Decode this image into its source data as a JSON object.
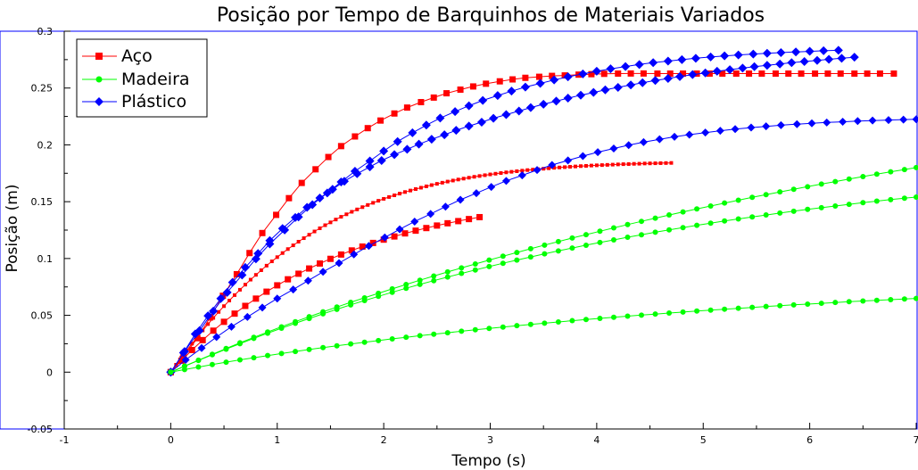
{
  "chart_data": {
    "type": "line",
    "title": "Posição por Tempo de Barquinhos de Materiais Variados",
    "xlabel": "Tempo (s)",
    "ylabel": "Posição (m)",
    "xlim": [
      -1,
      7
    ],
    "ylim": [
      -0.05,
      0.3
    ],
    "x_ticks": [
      -1,
      0,
      1,
      2,
      3,
      4,
      5,
      6,
      7
    ],
    "x_tick_labels": [
      "-1",
      "0",
      "1",
      "2",
      "3",
      "4",
      "5",
      "6",
      "7"
    ],
    "y_ticks": [
      -0.05,
      0,
      0.05,
      0.1,
      0.15,
      0.2,
      0.25,
      0.3
    ],
    "y_tick_labels": [
      "-0.05",
      "0",
      "0.05",
      "0.1",
      "0.15",
      "0.2",
      "0.25",
      "0.3"
    ],
    "grid": false,
    "legend_position": "top-left",
    "legend": [
      {
        "label": "Aço",
        "color": "#ff0000",
        "marker": "square"
      },
      {
        "label": "Madeira",
        "color": "#00ff00",
        "marker": "circle"
      },
      {
        "label": "Plástico",
        "color": "#0000ff",
        "marker": "diamond"
      }
    ],
    "series": [
      {
        "group": "Aço",
        "color": "#ff0000",
        "marker": "square",
        "marker_size": 7,
        "x": [
          0,
          0.12,
          0.25,
          0.37,
          0.49,
          0.62,
          0.74,
          0.86,
          0.99,
          1.11,
          1.23,
          1.36,
          1.48,
          1.6,
          1.73,
          1.85,
          1.97,
          2.1,
          2.22,
          2.35,
          2.47,
          2.59,
          2.72,
          2.84,
          2.96,
          3.09,
          3.21,
          3.33,
          3.46,
          3.58,
          3.7,
          3.83,
          3.95,
          4.07,
          4.2,
          4.32,
          4.44,
          4.57,
          4.69,
          4.81,
          4.94,
          5.06,
          5.18,
          5.31,
          5.43,
          5.55,
          5.68,
          5.8,
          5.92,
          6.05,
          6.17,
          6.29,
          6.42,
          6.54,
          6.66,
          6.79
        ],
        "y": [
          0,
          0.0136,
          0.0299,
          0.0481,
          0.0672,
          0.0862,
          0.1048,
          0.1224,
          0.1384,
          0.1531,
          0.1665,
          0.1785,
          0.1893,
          0.1989,
          0.2074,
          0.2147,
          0.2214,
          0.2276,
          0.2328,
          0.2376,
          0.2416,
          0.2454,
          0.2486,
          0.2514,
          0.2538,
          0.2559,
          0.2576,
          0.259,
          0.2599,
          0.2607,
          0.2611,
          0.2618,
          0.2622,
          0.2625,
          0.2627,
          0.2628,
          0.2628,
          0.2627,
          0.2627,
          0.2627,
          0.2627,
          0.2627,
          0.2627,
          0.2627,
          0.2627,
          0.2627,
          0.2627,
          0.2627,
          0.2627,
          0.2627,
          0.2627,
          0.2627,
          0.2627,
          0.2627,
          0.2627,
          0.2627
        ]
      },
      {
        "group": "Aço",
        "color": "#ff0000",
        "marker": "square",
        "marker_size": 7,
        "x": [
          0,
          0.1,
          0.2,
          0.3,
          0.4,
          0.5,
          0.6,
          0.7,
          0.8,
          0.9,
          1.0,
          1.1,
          1.2,
          1.3,
          1.4,
          1.5,
          1.6,
          1.7,
          1.8,
          1.9,
          2.0,
          2.1,
          2.2,
          2.3,
          2.4,
          2.5,
          2.6,
          2.7,
          2.8,
          2.9
        ],
        "y": [
          0,
          0.0101,
          0.0195,
          0.0282,
          0.0365,
          0.0443,
          0.0515,
          0.0583,
          0.0647,
          0.0708,
          0.0764,
          0.0817,
          0.0866,
          0.0912,
          0.0956,
          0.0997,
          0.1035,
          0.1071,
          0.1105,
          0.1137,
          0.1166,
          0.1194,
          0.1221,
          0.1245,
          0.1268,
          0.129,
          0.131,
          0.1329,
          0.1347,
          0.1364
        ]
      },
      {
        "group": "Aço",
        "color": "#ff0000",
        "marker": "square",
        "marker_size": 4,
        "x": [
          0,
          0.05,
          0.1,
          0.15,
          0.2,
          0.25,
          0.3,
          0.35,
          0.4,
          0.45,
          0.5,
          0.55,
          0.6,
          0.65,
          0.7,
          0.75,
          0.8,
          0.85,
          0.9,
          0.95,
          1.0,
          1.05,
          1.1,
          1.15,
          1.2,
          1.25,
          1.3,
          1.35,
          1.4,
          1.45,
          1.5,
          1.55,
          1.6,
          1.65,
          1.7,
          1.75,
          1.8,
          1.85,
          1.9,
          1.95,
          2.0,
          2.05,
          2.1,
          2.15,
          2.2,
          2.25,
          2.3,
          2.35,
          2.4,
          2.45,
          2.5,
          2.55,
          2.6,
          2.65,
          2.7,
          2.75,
          2.8,
          2.85,
          2.9,
          2.95,
          3.0,
          3.05,
          3.1,
          3.15,
          3.2,
          3.25,
          3.3,
          3.35,
          3.4,
          3.45,
          3.5,
          3.55,
          3.6,
          3.65,
          3.7,
          3.75,
          3.8,
          3.85,
          3.9,
          3.95,
          4.0,
          4.05,
          4.1,
          4.15,
          4.2,
          4.25,
          4.3,
          4.35,
          4.4,
          4.45,
          4.5,
          4.55,
          4.6,
          4.65,
          4.7
        ],
        "y": [
          0,
          0.0065,
          0.0129,
          0.0191,
          0.0251,
          0.031,
          0.0367,
          0.0423,
          0.0477,
          0.053,
          0.0581,
          0.063,
          0.0678,
          0.0725,
          0.077,
          0.0814,
          0.0856,
          0.0897,
          0.0937,
          0.0975,
          0.1012,
          0.1048,
          0.1083,
          0.1116,
          0.1148,
          0.1179,
          0.1209,
          0.1238,
          0.1266,
          0.1293,
          0.1318,
          0.1343,
          0.1367,
          0.1389,
          0.1411,
          0.1432,
          0.1452,
          0.1471,
          0.149,
          0.1508,
          0.1525,
          0.1541,
          0.1556,
          0.1571,
          0.1585,
          0.1598,
          0.1611,
          0.1623,
          0.1635,
          0.1646,
          0.1657,
          0.1667,
          0.1677,
          0.1686,
          0.1695,
          0.1703,
          0.1711,
          0.1719,
          0.1726,
          0.1733,
          0.174,
          0.1746,
          0.1752,
          0.1758,
          0.1763,
          0.1768,
          0.1773,
          0.1778,
          0.1782,
          0.1786,
          0.179,
          0.1794,
          0.1798,
          0.1801,
          0.1804,
          0.1807,
          0.181,
          0.1813,
          0.1815,
          0.1818,
          0.182,
          0.1822,
          0.1824,
          0.1826,
          0.1828,
          0.183,
          0.1831,
          0.1833,
          0.1834,
          0.1836,
          0.1837,
          0.1838,
          0.1839,
          0.184,
          0.1841
        ]
      },
      {
        "group": "Plástico",
        "color": "#0000ff",
        "marker": "diamond",
        "marker_size": 10,
        "x": [
          0,
          0.12,
          0.23,
          0.35,
          0.47,
          0.58,
          0.7,
          0.82,
          0.93,
          1.05,
          1.17,
          1.28,
          1.4,
          1.52,
          1.63,
          1.75,
          1.87,
          1.98,
          2.1,
          2.22,
          2.33,
          2.45,
          2.57,
          2.68,
          2.8,
          2.92,
          3.03,
          3.15,
          3.27,
          3.38,
          3.5,
          3.62,
          3.73,
          3.85,
          3.97,
          4.08,
          4.2,
          4.32,
          4.43,
          4.55,
          4.67,
          4.78,
          4.9,
          5.02,
          5.13,
          5.25,
          5.37,
          5.48,
          5.6,
          5.72,
          5.83,
          5.95,
          6.07,
          6.18,
          6.3,
          6.42
        ],
        "y": [
          0,
          0.0171,
          0.0336,
          0.0496,
          0.0648,
          0.079,
          0.0921,
          0.1044,
          0.1158,
          0.1264,
          0.1361,
          0.145,
          0.1533,
          0.1609,
          0.168,
          0.1746,
          0.1806,
          0.1862,
          0.1914,
          0.1961,
          0.2006,
          0.2049,
          0.2089,
          0.2128,
          0.2165,
          0.22,
          0.2234,
          0.2266,
          0.2298,
          0.2328,
          0.2357,
          0.2385,
          0.2411,
          0.2437,
          0.2461,
          0.2484,
          0.2506,
          0.2527,
          0.2547,
          0.2566,
          0.2584,
          0.2601,
          0.2618,
          0.2633,
          0.2648,
          0.2662,
          0.2675,
          0.2688,
          0.27,
          0.2712,
          0.2723,
          0.2733,
          0.2743,
          0.2753,
          0.2762,
          0.2771
        ]
      },
      {
        "group": "Plástico",
        "color": "#0000ff",
        "marker": "diamond",
        "marker_size": 10,
        "x": [
          0,
          0.13,
          0.27,
          0.4,
          0.53,
          0.67,
          0.8,
          0.93,
          1.07,
          1.2,
          1.33,
          1.47,
          1.6,
          1.73,
          1.87,
          2.0,
          2.13,
          2.27,
          2.4,
          2.53,
          2.67,
          2.8,
          2.93,
          3.07,
          3.2,
          3.33,
          3.47,
          3.6,
          3.73,
          3.87,
          4.0,
          4.13,
          4.27,
          4.4,
          4.53,
          4.67,
          4.8,
          4.93,
          5.07,
          5.2,
          5.33,
          5.47,
          5.6,
          5.73,
          5.87,
          6.0,
          6.13,
          6.27
        ],
        "y": [
          0,
          0.0182,
          0.0365,
          0.0537,
          0.0702,
          0.0855,
          0.0997,
          0.1128,
          0.1251,
          0.1366,
          0.1474,
          0.1577,
          0.1674,
          0.1768,
          0.1858,
          0.1945,
          0.2029,
          0.2106,
          0.2174,
          0.2236,
          0.2293,
          0.2344,
          0.2391,
          0.2434,
          0.2473,
          0.2509,
          0.2541,
          0.2571,
          0.2599,
          0.2624,
          0.2648,
          0.2669,
          0.2689,
          0.2707,
          0.2723,
          0.2737,
          0.275,
          0.2762,
          0.2773,
          0.2783,
          0.2791,
          0.2799,
          0.2806,
          0.2812,
          0.2818,
          0.2823,
          0.2828,
          0.2832
        ]
      },
      {
        "group": "Plástico",
        "color": "#0000ff",
        "marker": "diamond",
        "marker_size": 9,
        "x": [
          0,
          0.14,
          0.29,
          0.43,
          0.57,
          0.72,
          0.86,
          1.0,
          1.15,
          1.29,
          1.43,
          1.58,
          1.72,
          1.86,
          2.01,
          2.15,
          2.29,
          2.44,
          2.58,
          2.72,
          2.87,
          3.01,
          3.15,
          3.3,
          3.44,
          3.58,
          3.73,
          3.87,
          4.01,
          4.16,
          4.3,
          4.44,
          4.59,
          4.73,
          4.87,
          5.02,
          5.16,
          5.3,
          5.45,
          5.59,
          5.73,
          5.88,
          6.02,
          6.16,
          6.31,
          6.45,
          6.59,
          6.74,
          6.88,
          7.0
        ],
        "y": [
          0,
          0.0108,
          0.0212,
          0.0309,
          0.04,
          0.0486,
          0.0568,
          0.0648,
          0.0727,
          0.0805,
          0.0883,
          0.096,
          0.1036,
          0.1111,
          0.1185,
          0.1257,
          0.1325,
          0.1392,
          0.1456,
          0.1517,
          0.1575,
          0.163,
          0.1683,
          0.1732,
          0.1779,
          0.1823,
          0.1863,
          0.1901,
          0.1936,
          0.1968,
          0.1997,
          0.2024,
          0.2049,
          0.2071,
          0.209,
          0.2108,
          0.2124,
          0.2139,
          0.2152,
          0.2163,
          0.2173,
          0.2182,
          0.219,
          0.2197,
          0.2203,
          0.2209,
          0.2214,
          0.2218,
          0.2222,
          0.2225
        ]
      },
      {
        "group": "Madeira",
        "color": "#00ff00",
        "marker": "circle",
        "marker_size": 6,
        "x": [
          0,
          0.13,
          0.26,
          0.39,
          0.52,
          0.65,
          0.78,
          0.91,
          1.04,
          1.17,
          1.3,
          1.43,
          1.56,
          1.69,
          1.82,
          1.95,
          2.08,
          2.21,
          2.34,
          2.47,
          2.6,
          2.73,
          2.86,
          2.99,
          3.12,
          3.25,
          3.38,
          3.51,
          3.64,
          3.77,
          3.9,
          4.03,
          4.16,
          4.29,
          4.42,
          4.55,
          4.68,
          4.81,
          4.94,
          5.07,
          5.2,
          5.33,
          5.46,
          5.59,
          5.72,
          5.85,
          5.98,
          6.11,
          6.24,
          6.37,
          6.5,
          6.63,
          6.76,
          6.89,
          7.0
        ],
        "y": [
          0,
          0.0053,
          0.0105,
          0.0157,
          0.0208,
          0.0258,
          0.0306,
          0.0353,
          0.0399,
          0.0444,
          0.0488,
          0.0531,
          0.0573,
          0.0614,
          0.0654,
          0.0694,
          0.0733,
          0.0771,
          0.0809,
          0.0846,
          0.0882,
          0.0917,
          0.0952,
          0.0986,
          0.102,
          0.1053,
          0.1086,
          0.1118,
          0.1149,
          0.118,
          0.121,
          0.124,
          0.127,
          0.1299,
          0.1327,
          0.1355,
          0.1383,
          0.141,
          0.1436,
          0.1462,
          0.1488,
          0.1513,
          0.1538,
          0.1562,
          0.1586,
          0.1609,
          0.1632,
          0.1655,
          0.1677,
          0.1699,
          0.1721,
          0.1742,
          0.1763,
          0.1783,
          0.18
        ]
      },
      {
        "group": "Madeira",
        "color": "#00ff00",
        "marker": "circle",
        "marker_size": 6,
        "x": [
          0,
          0.13,
          0.26,
          0.39,
          0.52,
          0.65,
          0.78,
          0.91,
          1.04,
          1.17,
          1.3,
          1.43,
          1.56,
          1.69,
          1.82,
          1.95,
          2.08,
          2.21,
          2.34,
          2.47,
          2.6,
          2.73,
          2.86,
          2.99,
          3.12,
          3.25,
          3.38,
          3.51,
          3.64,
          3.77,
          3.9,
          4.03,
          4.16,
          4.29,
          4.42,
          4.55,
          4.68,
          4.81,
          4.94,
          5.07,
          5.2,
          5.33,
          5.46,
          5.59,
          5.72,
          5.85,
          5.98,
          6.11,
          6.24,
          6.37,
          6.5,
          6.63,
          6.76,
          6.89,
          7.0
        ],
        "y": [
          0,
          0.0052,
          0.0103,
          0.0153,
          0.0202,
          0.025,
          0.0297,
          0.0343,
          0.0387,
          0.043,
          0.0472,
          0.0513,
          0.0553,
          0.0592,
          0.063,
          0.0667,
          0.0703,
          0.0738,
          0.0772,
          0.0805,
          0.0837,
          0.0869,
          0.0899,
          0.0929,
          0.0958,
          0.0986,
          0.1014,
          0.1041,
          0.1067,
          0.1092,
          0.1117,
          0.1141,
          0.1164,
          0.1187,
          0.1209,
          0.1231,
          0.1252,
          0.1272,
          0.1292,
          0.1311,
          0.133,
          0.1348,
          0.1366,
          0.1383,
          0.14,
          0.1416,
          0.1432,
          0.1447,
          0.1462,
          0.1477,
          0.1491,
          0.1505,
          0.1518,
          0.1531,
          0.154
        ]
      },
      {
        "group": "Madeira",
        "color": "#00ff00",
        "marker": "circle",
        "marker_size": 6,
        "x": [
          0,
          0.13,
          0.26,
          0.39,
          0.52,
          0.65,
          0.78,
          0.91,
          1.04,
          1.17,
          1.3,
          1.43,
          1.56,
          1.69,
          1.82,
          1.95,
          2.08,
          2.21,
          2.34,
          2.47,
          2.6,
          2.73,
          2.86,
          2.99,
          3.12,
          3.25,
          3.38,
          3.51,
          3.64,
          3.77,
          3.9,
          4.03,
          4.16,
          4.29,
          4.42,
          4.55,
          4.68,
          4.81,
          4.94,
          5.07,
          5.2,
          5.33,
          5.46,
          5.59,
          5.72,
          5.85,
          5.98,
          6.11,
          6.24,
          6.37,
          6.5,
          6.63,
          6.76,
          6.89,
          7.0
        ],
        "y": [
          0,
          0.0023,
          0.0045,
          0.0067,
          0.0088,
          0.0108,
          0.0127,
          0.0146,
          0.0164,
          0.0182,
          0.0199,
          0.0216,
          0.0232,
          0.0248,
          0.0263,
          0.0278,
          0.0293,
          0.0307,
          0.0321,
          0.0334,
          0.0347,
          0.036,
          0.0373,
          0.0385,
          0.0397,
          0.0409,
          0.042,
          0.0431,
          0.0442,
          0.0453,
          0.0463,
          0.0473,
          0.0483,
          0.0493,
          0.0502,
          0.0511,
          0.052,
          0.0529,
          0.0538,
          0.0546,
          0.0554,
          0.0562,
          0.057,
          0.0578,
          0.0585,
          0.0592,
          0.0599,
          0.0606,
          0.0613,
          0.062,
          0.0626,
          0.0632,
          0.0638,
          0.0644,
          0.0649
        ]
      }
    ]
  }
}
